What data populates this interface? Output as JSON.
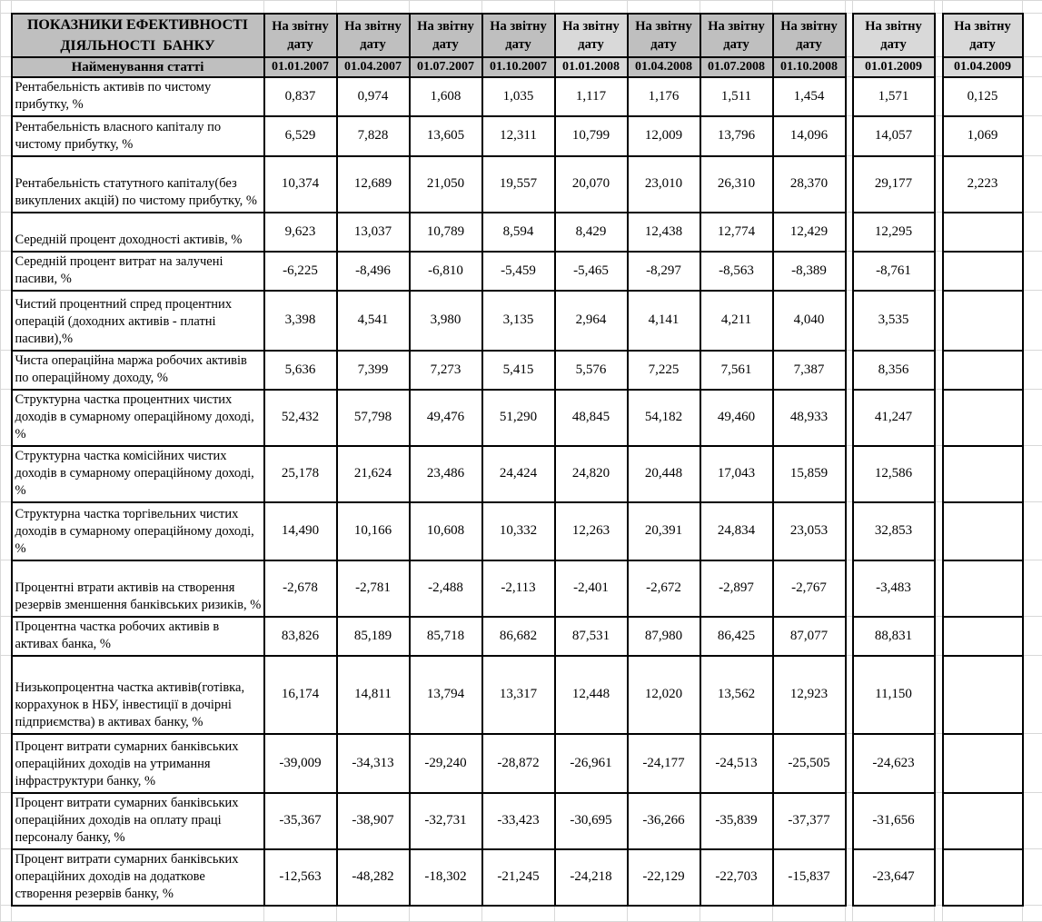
{
  "colors": {
    "table_border": "#000000",
    "gridline": "#d8d8d8",
    "header_fill": "#bfbfbf",
    "header_fill_light": "#d9d9d9",
    "text": "#000000",
    "background": "#ffffff"
  },
  "table": {
    "title": "ПОКАЗНИКИ ЕФЕКТИВНОСТІ\nДІЯЛЬНОСТІ  БАНКУ",
    "stub_header": "Найменування статті",
    "period_header": "На звітну дату",
    "dates": [
      "01.01.2007",
      "01.04.2007",
      "01.07.2007",
      "01.10.2007",
      "01.01.2008",
      "01.04.2008",
      "01.07.2008",
      "01.10.2008",
      "01.01.2009",
      "01.04.2009"
    ],
    "rows": [
      {
        "label": "Рентабельність активів по чистому прибутку, %",
        "values": [
          "0,837",
          "0,974",
          "1,608",
          "1,035",
          "1,117",
          "1,176",
          "1,511",
          "1,454",
          "1,571",
          "0,125"
        ]
      },
      {
        "label": "Рентабельність власного капіталу по чистому прибутку, %",
        "values": [
          "6,529",
          "7,828",
          "13,605",
          "12,311",
          "10,799",
          "12,009",
          "13,796",
          "14,096",
          "14,057",
          "1,069"
        ]
      },
      {
        "label": "Рентабельність статутного капіталу(без викуплених акцій) по чистому прибутку, %",
        "values": [
          "10,374",
          "12,689",
          "21,050",
          "19,557",
          "20,070",
          "23,010",
          "26,310",
          "28,370",
          "29,177",
          "2,223"
        ]
      },
      {
        "label": "Середній процент доходності активів, %",
        "values": [
          "9,623",
          "13,037",
          "10,789",
          "8,594",
          "8,429",
          "12,438",
          "12,774",
          "12,429",
          "12,295",
          ""
        ]
      },
      {
        "label": "Середній процент витрат на залучені пасиви, %",
        "values": [
          "-6,225",
          "-8,496",
          "-6,810",
          "-5,459",
          "-5,465",
          "-8,297",
          "-8,563",
          "-8,389",
          "-8,761",
          ""
        ]
      },
      {
        "label": "Чистий процентний спред процентних операцій (доходних активів - платні пасиви),%",
        "values": [
          "3,398",
          "4,541",
          "3,980",
          "3,135",
          "2,964",
          "4,141",
          "4,211",
          "4,040",
          "3,535",
          ""
        ]
      },
      {
        "label": "Чиста операційна маржа робочих активів по операційному доходу, %",
        "values": [
          "5,636",
          "7,399",
          "7,273",
          "5,415",
          "5,576",
          "7,225",
          "7,561",
          "7,387",
          "8,356",
          ""
        ]
      },
      {
        "label": "Структурна частка процентних чистих доходів в сумарному операційному доході, %",
        "values": [
          "52,432",
          "57,798",
          "49,476",
          "51,290",
          "48,845",
          "54,182",
          "49,460",
          "48,933",
          "41,247",
          ""
        ]
      },
      {
        "label": "Структурна частка комісійних чистих доходів в сумарному операційному доході, %",
        "values": [
          "25,178",
          "21,624",
          "23,486",
          "24,424",
          "24,820",
          "20,448",
          "17,043",
          "15,859",
          "12,586",
          ""
        ]
      },
      {
        "label": "Структурна частка торгівельних чистих доходів в сумарному операційному доході, %",
        "values": [
          "14,490",
          "10,166",
          "10,608",
          "10,332",
          "12,263",
          "20,391",
          "24,834",
          "23,053",
          "32,853",
          ""
        ]
      },
      {
        "label": "Процентні втрати активів на створення резервів зменшення банківських ризиків, %",
        "values": [
          "-2,678",
          "-2,781",
          "-2,488",
          "-2,113",
          "-2,401",
          "-2,672",
          "-2,897",
          "-2,767",
          "-3,483",
          ""
        ]
      },
      {
        "label": "Процентна частка робочих активів в активах банка, %",
        "values": [
          "83,826",
          "85,189",
          "85,718",
          "86,682",
          "87,531",
          "87,980",
          "86,425",
          "87,077",
          "88,831",
          ""
        ]
      },
      {
        "label": "Низькопроцентна частка активів(готівка, коррахунок в НБУ, інвестиції в дочірні підприємства) в активах банку, %",
        "values": [
          "16,174",
          "14,811",
          "13,794",
          "13,317",
          "12,448",
          "12,020",
          "13,562",
          "12,923",
          "11,150",
          ""
        ]
      },
      {
        "label": "Процент витрати сумарних банківських операційних доходів на утримання інфраструктури банку, %",
        "values": [
          "-39,009",
          "-34,313",
          "-29,240",
          "-28,872",
          "-26,961",
          "-24,177",
          "-24,513",
          "-25,505",
          "-24,623",
          ""
        ]
      },
      {
        "label": "Процент витрати сумарних банківських операційних доходів на оплату праці персоналу банку, %",
        "values": [
          "-35,367",
          "-38,907",
          "-32,731",
          "-33,423",
          "-30,695",
          "-36,266",
          "-35,839",
          "-37,377",
          "-31,656",
          ""
        ]
      },
      {
        "label": "Процент витрати сумарних банківських операційних доходів на додаткове створення резервів банку, %",
        "values": [
          "-12,563",
          "-48,282",
          "-18,302",
          "-21,245",
          "-24,218",
          "-22,129",
          "-22,703",
          "-15,837",
          "-23,647",
          ""
        ]
      }
    ]
  }
}
